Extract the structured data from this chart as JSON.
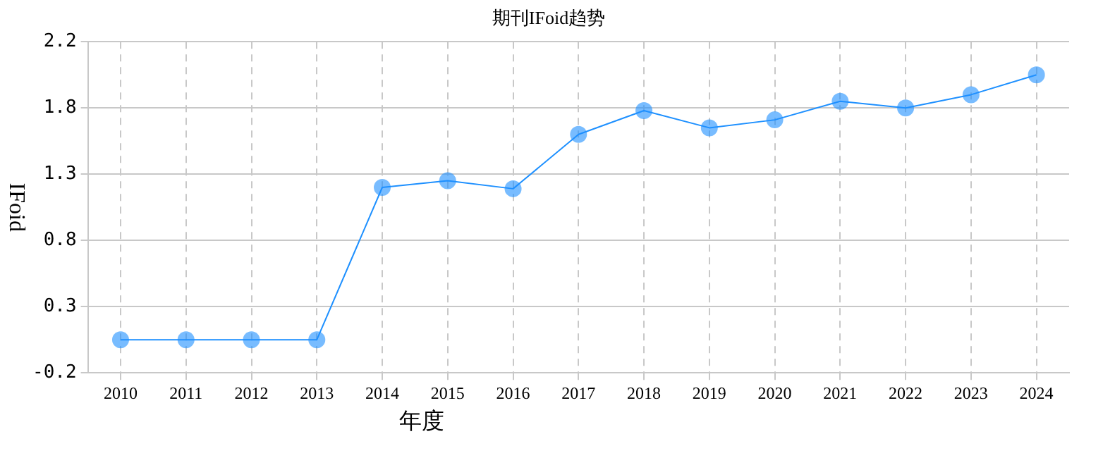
{
  "chart_data": {
    "type": "line",
    "title": "期刊IFoid趋势",
    "xlabel": "年度",
    "ylabel": "IFoid",
    "categories": [
      "2010",
      "2011",
      "2012",
      "2013",
      "2014",
      "2015",
      "2016",
      "2017",
      "2018",
      "2019",
      "2020",
      "2021",
      "2022",
      "2023",
      "2024"
    ],
    "series": [
      {
        "color": "#1e90ff",
        "values": [
          0,
          0,
          0,
          0,
          1.15,
          1.2,
          1.14,
          1.55,
          1.73,
          1.6,
          1.66,
          1.8,
          1.75,
          1.85,
          2.0
        ]
      }
    ],
    "ylim": [
      -0.25,
      2.25
    ],
    "yticks": [
      {
        "value": -0.25,
        "label": "-0.2"
      },
      {
        "value": 0.25,
        "label": "0.3"
      },
      {
        "value": 0.75,
        "label": "0.8"
      },
      {
        "value": 1.25,
        "label": "1.3"
      },
      {
        "value": 1.75,
        "label": "1.8"
      },
      {
        "value": 2.25,
        "label": "2.2"
      }
    ],
    "grid": true,
    "marker": "circle",
    "line_style": "solid",
    "legend": false
  }
}
